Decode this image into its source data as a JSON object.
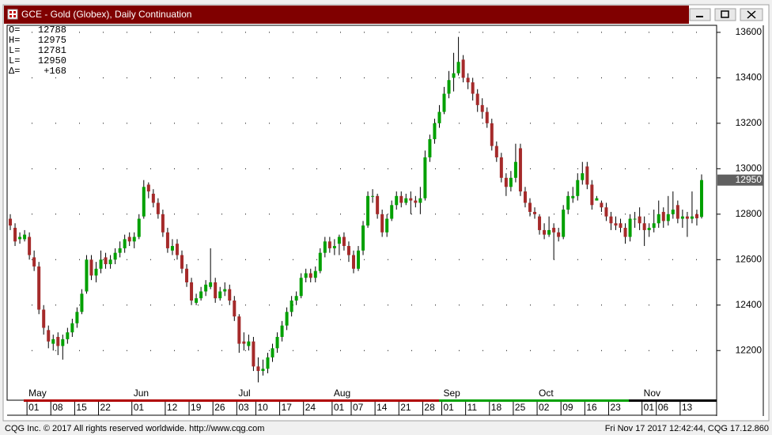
{
  "window": {
    "title": "GCE - Gold (Globex), Daily Continuation"
  },
  "footer": {
    "left": "CQG Inc. © 2017 All rights reserved worldwide. http://www.cqg.com",
    "right": "Fri Nov 17 2017 12:42:44, CQG 17.12.860"
  },
  "chart_data": {
    "type": "candlestick",
    "info_labels": [
      "O=",
      "H=",
      "L=",
      "L=",
      "Δ="
    ],
    "change": {
      "value": 168,
      "label": "+168"
    },
    "ylim": [
      11985,
      13631
    ],
    "yticks": [
      12200,
      12400,
      12600,
      12800,
      13000,
      13200,
      13400,
      13600
    ],
    "grid": "dotted",
    "up_color": "#00a000",
    "down_color": "#a52a2a",
    "categories": [
      null,
      null,
      null,
      null,
      "01",
      null,
      null,
      null,
      null,
      "08",
      null,
      null,
      null,
      null,
      "15",
      null,
      null,
      null,
      null,
      "22",
      null,
      null,
      null,
      null,
      null,
      null,
      "01",
      null,
      null,
      null,
      null,
      null,
      null,
      "12",
      null,
      null,
      null,
      null,
      "19",
      null,
      null,
      null,
      null,
      "26",
      null,
      null,
      null,
      null,
      "03",
      null,
      null,
      null,
      "10",
      null,
      null,
      null,
      null,
      "17",
      null,
      null,
      null,
      null,
      "24",
      null,
      null,
      null,
      null,
      null,
      "01",
      null,
      null,
      null,
      "07",
      null,
      null,
      null,
      null,
      "14",
      null,
      null,
      null,
      null,
      "21",
      null,
      null,
      null,
      null,
      "28",
      null,
      null,
      null,
      "01",
      null,
      null,
      null,
      null,
      "11",
      null,
      null,
      null,
      null,
      "18",
      null,
      null,
      null,
      null,
      "25",
      null,
      null,
      null,
      null,
      "02",
      null,
      null,
      null,
      null,
      "09",
      null,
      null,
      null,
      null,
      "16",
      null,
      null,
      null,
      null,
      "23",
      null,
      null,
      null,
      null,
      null,
      null,
      "01",
      null,
      null,
      "06",
      null,
      null,
      null,
      null,
      "13",
      null,
      null,
      null,
      null
    ],
    "months": [
      null,
      null,
      null,
      null,
      "May",
      null,
      null,
      null,
      null,
      null,
      null,
      null,
      null,
      null,
      null,
      null,
      null,
      null,
      null,
      null,
      null,
      null,
      null,
      null,
      null,
      null,
      "Jun",
      null,
      null,
      null,
      null,
      null,
      null,
      null,
      null,
      null,
      null,
      null,
      null,
      null,
      null,
      null,
      null,
      null,
      null,
      null,
      null,
      null,
      "Jul",
      null,
      null,
      null,
      null,
      null,
      null,
      null,
      null,
      null,
      null,
      null,
      null,
      null,
      null,
      null,
      null,
      null,
      null,
      null,
      "Aug",
      null,
      null,
      null,
      null,
      null,
      null,
      null,
      null,
      null,
      null,
      null,
      null,
      null,
      null,
      null,
      null,
      null,
      null,
      null,
      null,
      null,
      null,
      "Sep",
      null,
      null,
      null,
      null,
      null,
      null,
      null,
      null,
      null,
      null,
      null,
      null,
      null,
      null,
      null,
      null,
      null,
      null,
      null,
      "Oct",
      null,
      null,
      null,
      null,
      null,
      null,
      null,
      null,
      null,
      null,
      null,
      null,
      null,
      null,
      null,
      null,
      null,
      null,
      null,
      null,
      null,
      "Nov",
      null,
      null,
      null,
      null,
      null,
      null,
      null,
      null,
      null,
      null,
      null,
      null
    ],
    "ohlc": [
      [
        12780,
        12800,
        12730,
        12750
      ],
      [
        12740,
        12760,
        12660,
        12680
      ],
      [
        12690,
        12720,
        12670,
        12700
      ],
      [
        12690,
        12730,
        12680,
        12710
      ],
      [
        12700,
        12720,
        12600,
        12620
      ],
      [
        12610,
        12640,
        12550,
        12570
      ],
      [
        12570,
        12590,
        12360,
        12380
      ],
      [
        12380,
        12400,
        12270,
        12300
      ],
      [
        12290,
        12310,
        12210,
        12240
      ],
      [
        12230,
        12270,
        12200,
        12250
      ],
      [
        12260,
        12280,
        12180,
        12220
      ],
      [
        12220,
        12270,
        12160,
        12250
      ],
      [
        12250,
        12300,
        12230,
        12280
      ],
      [
        12280,
        12340,
        12260,
        12320
      ],
      [
        12320,
        12390,
        12300,
        12370
      ],
      [
        12370,
        12470,
        12360,
        12450
      ],
      [
        12460,
        12620,
        12450,
        12600
      ],
      [
        12600,
        12620,
        12510,
        12530
      ],
      [
        12530,
        12590,
        12500,
        12560
      ],
      [
        12560,
        12640,
        12540,
        12600
      ],
      [
        12610,
        12630,
        12560,
        12580
      ],
      [
        12580,
        12620,
        12560,
        12600
      ],
      [
        12600,
        12650,
        12580,
        12630
      ],
      [
        12630,
        12680,
        12610,
        12650
      ],
      [
        12650,
        12710,
        12630,
        12690
      ],
      [
        12700,
        12720,
        12660,
        12680
      ],
      [
        12680,
        12720,
        12650,
        12700
      ],
      [
        12700,
        12800,
        12690,
        12780
      ],
      [
        12790,
        12950,
        12780,
        12920
      ],
      [
        12930,
        12940,
        12870,
        12900
      ],
      [
        12890,
        12910,
        12830,
        12850
      ],
      [
        12850,
        12870,
        12780,
        12800
      ],
      [
        12800,
        12820,
        12700,
        12720
      ],
      [
        12720,
        12740,
        12630,
        12650
      ],
      [
        12640,
        12690,
        12620,
        12660
      ],
      [
        12670,
        12690,
        12600,
        12620
      ],
      [
        12620,
        12640,
        12540,
        12560
      ],
      [
        12560,
        12580,
        12480,
        12500
      ],
      [
        12500,
        12520,
        12400,
        12420
      ],
      [
        12410,
        12450,
        12400,
        12430
      ],
      [
        12430,
        12480,
        12420,
        12460
      ],
      [
        12460,
        12510,
        12440,
        12490
      ],
      [
        12480,
        12650,
        12470,
        12500
      ],
      [
        12500,
        12520,
        12410,
        12430
      ],
      [
        12430,
        12480,
        12420,
        12460
      ],
      [
        12460,
        12500,
        12440,
        12470
      ],
      [
        12470,
        12490,
        12400,
        12420
      ],
      [
        12420,
        12440,
        12330,
        12350
      ],
      [
        12350,
        12360,
        12190,
        12230
      ],
      [
        12240,
        12280,
        12200,
        12230
      ],
      [
        12220,
        12270,
        12200,
        12240
      ],
      [
        12240,
        12260,
        12110,
        12130
      ],
      [
        12130,
        12170,
        12060,
        12110
      ],
      [
        12110,
        12160,
        12090,
        12120
      ],
      [
        12120,
        12190,
        12100,
        12170
      ],
      [
        12170,
        12230,
        12150,
        12210
      ],
      [
        12210,
        12280,
        12190,
        12260
      ],
      [
        12260,
        12330,
        12240,
        12310
      ],
      [
        12310,
        12390,
        12290,
        12370
      ],
      [
        12370,
        12440,
        12350,
        12420
      ],
      [
        12420,
        12460,
        12400,
        12440
      ],
      [
        12440,
        12540,
        12430,
        12520
      ],
      [
        12520,
        12560,
        12500,
        12540
      ],
      [
        12540,
        12560,
        12500,
        12520
      ],
      [
        12520,
        12570,
        12500,
        12550
      ],
      [
        12550,
        12650,
        12540,
        12630
      ],
      [
        12630,
        12700,
        12610,
        12680
      ],
      [
        12680,
        12700,
        12630,
        12650
      ],
      [
        12650,
        12690,
        12620,
        12660
      ],
      [
        12670,
        12710,
        12620,
        12700
      ],
      [
        12700,
        12720,
        12640,
        12660
      ],
      [
        12660,
        12680,
        12590,
        12620
      ],
      [
        12620,
        12640,
        12540,
        12560
      ],
      [
        12560,
        12660,
        12550,
        12640
      ],
      [
        12640,
        12770,
        12620,
        12750
      ],
      [
        12750,
        12900,
        12740,
        12880
      ],
      [
        12880,
        12910,
        12850,
        12880
      ],
      [
        12880,
        12890,
        12780,
        12800
      ],
      [
        12800,
        12820,
        12700,
        12720
      ],
      [
        12720,
        12800,
        12700,
        12780
      ],
      [
        12780,
        12860,
        12770,
        12840
      ],
      [
        12840,
        12900,
        12820,
        12880
      ],
      [
        12880,
        12900,
        12830,
        12850
      ],
      [
        12850,
        12890,
        12840,
        12870
      ],
      [
        12870,
        12900,
        12800,
        12860
      ],
      [
        12860,
        12880,
        12830,
        12850
      ],
      [
        12850,
        12920,
        12800,
        12870
      ],
      [
        12870,
        13080,
        12860,
        13050
      ],
      [
        13050,
        13150,
        13030,
        13130
      ],
      [
        13130,
        13220,
        13110,
        13200
      ],
      [
        13200,
        13280,
        13180,
        13250
      ],
      [
        13250,
        13360,
        13240,
        13330
      ],
      [
        13330,
        13430,
        13310,
        13390
      ],
      [
        13400,
        13510,
        13340,
        13420
      ],
      [
        13420,
        13580,
        13410,
        13470
      ],
      [
        13480,
        13500,
        13380,
        13400
      ],
      [
        13400,
        13420,
        13350,
        13380
      ],
      [
        13380,
        13400,
        13300,
        13330
      ],
      [
        13330,
        13350,
        13250,
        13280
      ],
      [
        13280,
        13310,
        13220,
        13250
      ],
      [
        13250,
        13270,
        13180,
        13200
      ],
      [
        13200,
        13220,
        13080,
        13100
      ],
      [
        13100,
        13120,
        13030,
        13050
      ],
      [
        13050,
        13070,
        12940,
        12960
      ],
      [
        12960,
        12980,
        12880,
        12920
      ],
      [
        12920,
        12990,
        12900,
        12960
      ],
      [
        12960,
        13110,
        12940,
        13030
      ],
      [
        13090,
        13110,
        12880,
        12900
      ],
      [
        12900,
        12920,
        12830,
        12850
      ],
      [
        12850,
        12870,
        12790,
        12810
      ],
      [
        12810,
        12830,
        12780,
        12800
      ],
      [
        12790,
        12800,
        12710,
        12730
      ],
      [
        12730,
        12760,
        12690,
        12710
      ],
      [
        12710,
        12790,
        12700,
        12730
      ],
      [
        12740,
        12760,
        12600,
        12720
      ],
      [
        12720,
        12740,
        12680,
        12700
      ],
      [
        12700,
        12840,
        12690,
        12820
      ],
      [
        12820,
        12900,
        12800,
        12880
      ],
      [
        12870,
        12920,
        12850,
        12880
      ],
      [
        12880,
        12980,
        12860,
        12950
      ],
      [
        12950,
        13030,
        12930,
        12980
      ],
      [
        13010,
        13030,
        12910,
        12930
      ],
      [
        12930,
        12950,
        12820,
        12840
      ],
      [
        12860,
        12880,
        12860,
        12870
      ],
      [
        12850,
        12860,
        12810,
        12830
      ],
      [
        12830,
        12850,
        12770,
        12790
      ],
      [
        12790,
        12810,
        12730,
        12760
      ],
      [
        12760,
        12790,
        12730,
        12750
      ],
      [
        12760,
        12780,
        12720,
        12740
      ],
      [
        12740,
        12760,
        12670,
        12700
      ],
      [
        12700,
        12800,
        12680,
        12780
      ],
      [
        12780,
        12810,
        12740,
        12780
      ],
      [
        12790,
        12830,
        12730,
        12760
      ],
      [
        12760,
        12790,
        12660,
        12730
      ],
      [
        12730,
        12760,
        12700,
        12740
      ],
      [
        12740,
        12820,
        12720,
        12760
      ],
      [
        12760,
        12860,
        12740,
        12800
      ],
      [
        12810,
        12830,
        12740,
        12770
      ],
      [
        12770,
        12880,
        12750,
        12800
      ],
      [
        12800,
        12900,
        12780,
        12820
      ],
      [
        12840,
        12860,
        12760,
        12780
      ],
      [
        12780,
        12820,
        12740,
        12790
      ],
      [
        12790,
        12810,
        12700,
        12780
      ],
      [
        12780,
        12900,
        12760,
        12790
      ],
      [
        12800,
        12820,
        12750,
        12782
      ],
      [
        12788,
        12975,
        12781,
        12950
      ]
    ]
  }
}
